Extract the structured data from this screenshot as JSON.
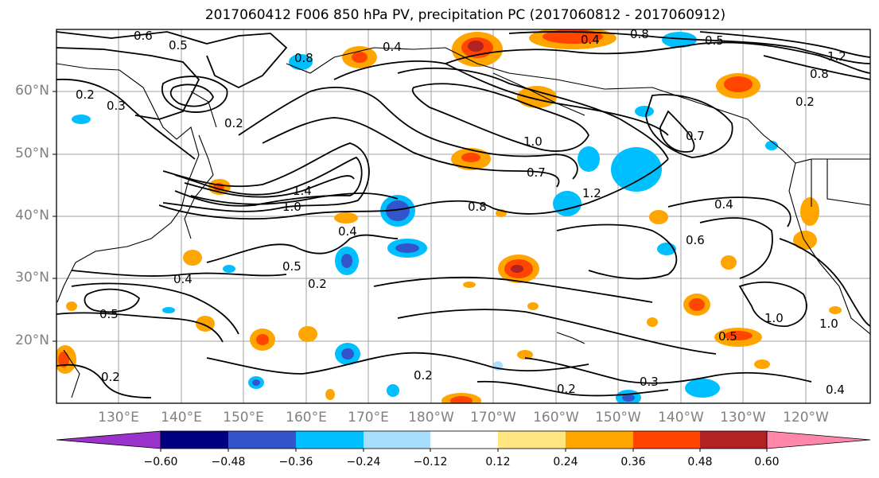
{
  "title": "2017060412 F006 850 hPa PV, precipitation PC (2017060812 - 2017060912)",
  "lat_labels": [
    "60°N",
    "50°N",
    "40°N",
    "30°N",
    "20°N"
  ],
  "lon_labels": [
    "130°E",
    "140°E",
    "150°E",
    "160°E",
    "170°E",
    "180°W",
    "170°W",
    "160°W",
    "150°W",
    "140°W",
    "130°W",
    "120°W"
  ],
  "colorbar": {
    "ticks": [
      "−0.60",
      "−0.48",
      "−0.36",
      "−0.24",
      "−0.12",
      "0.12",
      "0.24",
      "0.36",
      "0.48",
      "0.60"
    ],
    "colors": [
      "#9933cc",
      "#000080",
      "#3355cc",
      "#00bfff",
      "#aadeff",
      "#ffffff",
      "#ffe680",
      "#ffa500",
      "#ff4500",
      "#b22222",
      "#ff88aa"
    ]
  },
  "contour_labels": [
    "0.6",
    "0.5",
    "0.2",
    "0.3",
    "0.4",
    "0.8",
    "1.0",
    "0.7",
    "1.2",
    "0.2",
    "0.5",
    "0.4",
    "1.0",
    "0.6",
    "0.2",
    "0.3"
  ],
  "colors": {
    "frame": "#000000",
    "grid": "#a0a0a0",
    "axis_text": "#808080",
    "contour": "#000000"
  }
}
